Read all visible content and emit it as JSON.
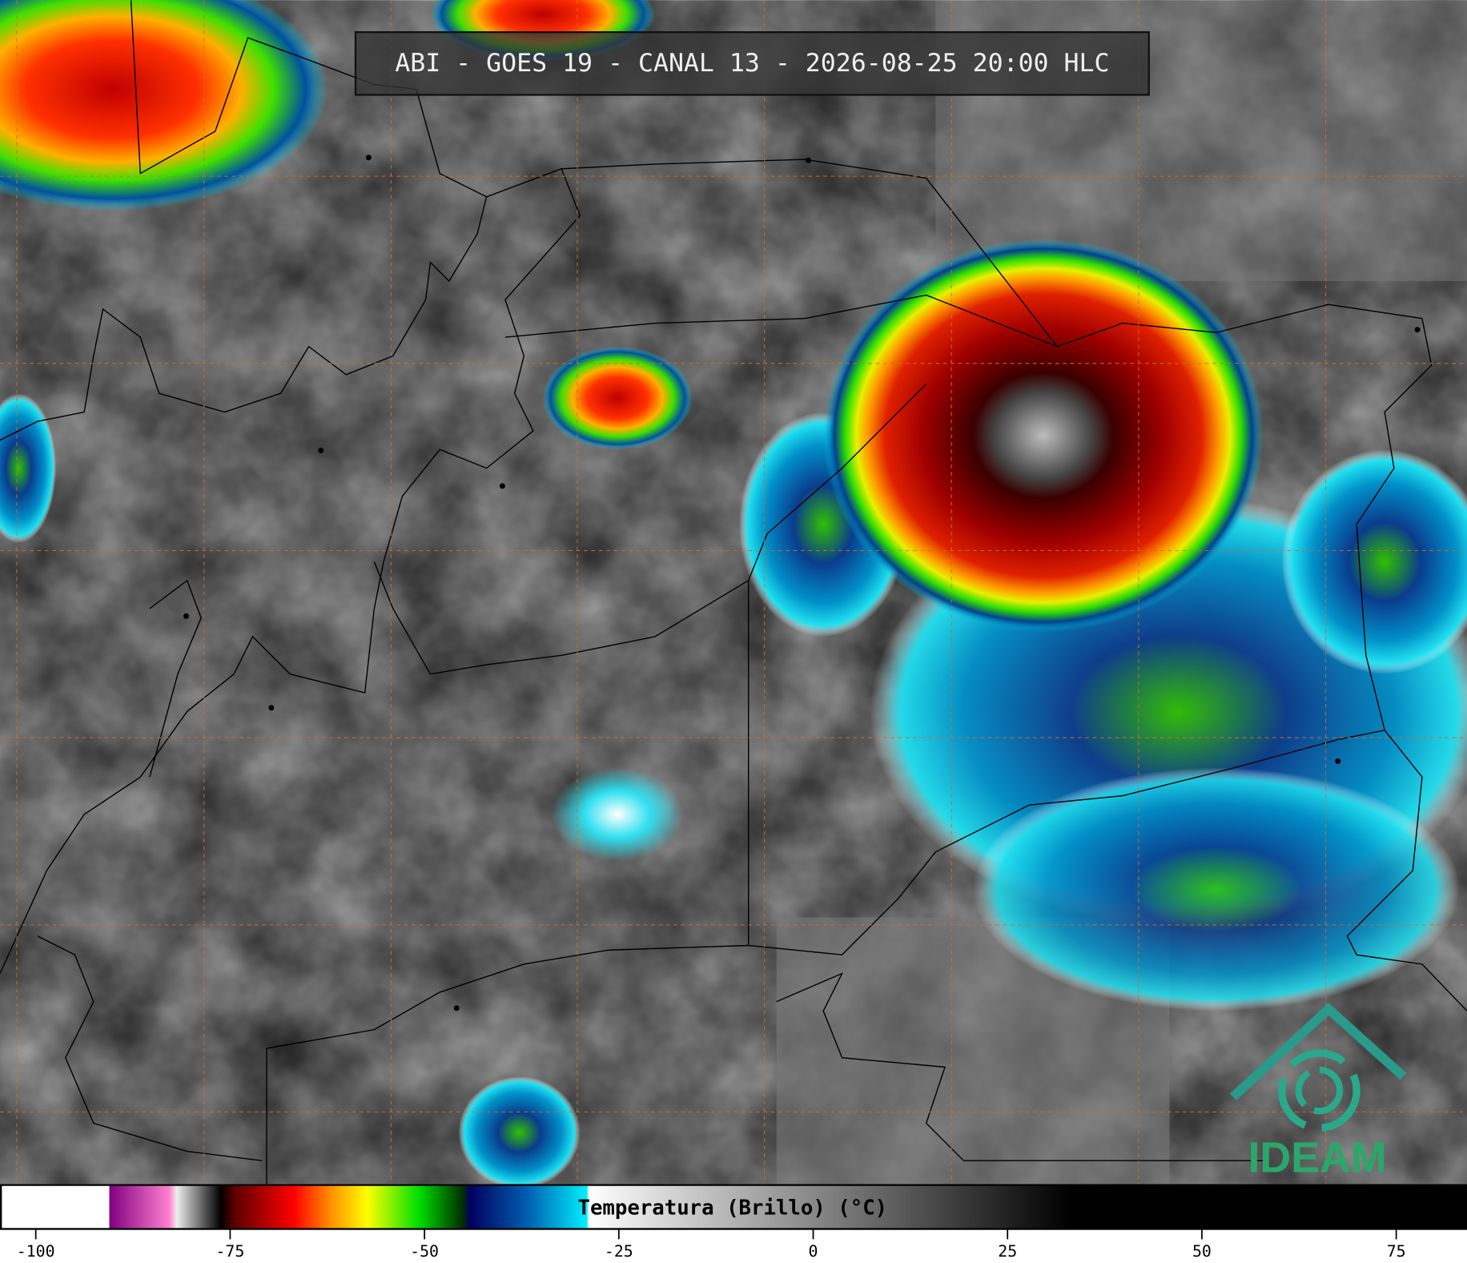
{
  "header": {
    "title": "ABI - GOES 19 - CANAL 13 - 2026-08-25 20:00 HLC"
  },
  "colorbar": {
    "label": "Temperatura (Brillo) (°C)",
    "range": [
      -104.6,
      84.1
    ],
    "ticks": [
      -100,
      -75,
      -50,
      -25,
      0,
      25,
      50,
      75
    ]
  },
  "logo": {
    "text": "IDEAM"
  }
}
